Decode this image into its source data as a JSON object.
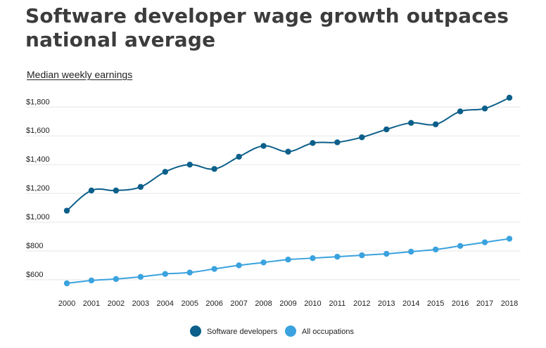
{
  "title": "Software developer wage growth outpaces national average",
  "subtitle": "Median weekly earnings",
  "colors": {
    "software": "#0b5f8a",
    "all": "#3aa2de",
    "grid": "#e6e6e6"
  },
  "chart_data": {
    "type": "line",
    "title": "Software developer wage growth outpaces national average",
    "subtitle": "Median weekly earnings",
    "x": [
      2000,
      2001,
      2002,
      2003,
      2004,
      2005,
      2006,
      2007,
      2008,
      2009,
      2010,
      2011,
      2012,
      2013,
      2014,
      2015,
      2016,
      2017,
      2018
    ],
    "series": [
      {
        "name": "Software developers",
        "color": "#0b5f8a",
        "values": [
          1080,
          1220,
          1220,
          1245,
          1350,
          1400,
          1370,
          1455,
          1530,
          1490,
          1550,
          1555,
          1590,
          1645,
          1690,
          1680,
          1770,
          1790,
          1865
        ]
      },
      {
        "name": "All occupations",
        "color": "#3aa2de",
        "values": [
          575,
          595,
          605,
          620,
          640,
          650,
          675,
          700,
          720,
          740,
          750,
          760,
          770,
          780,
          795,
          810,
          835,
          860,
          885
        ]
      }
    ],
    "yticks": [
      600,
      800,
      1000,
      1200,
      1400,
      1600,
      1800
    ],
    "ytick_labels": [
      "$600",
      "$800",
      "$1,000",
      "$1,200",
      "$1,400",
      "$1,600",
      "$1,800"
    ],
    "ylim": [
      520,
      1900
    ],
    "grid": true,
    "legend_position": "bottom-center"
  }
}
